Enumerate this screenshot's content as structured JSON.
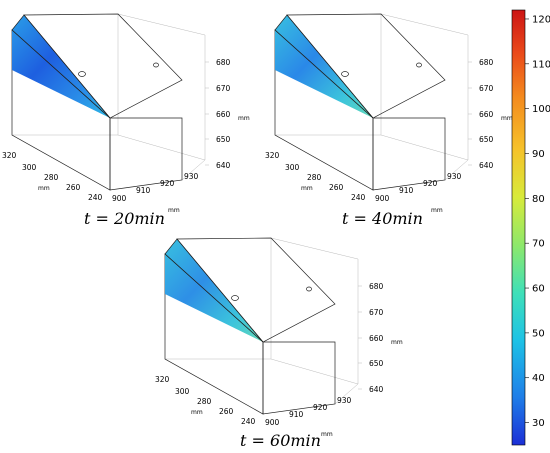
{
  "panels": [
    {
      "caption": "t = 20min",
      "z_ticks": [
        "680",
        "670",
        "660",
        "650",
        "640"
      ],
      "z_unit": "mm",
      "y_ticks": [
        "320",
        "300",
        "280",
        "260",
        "240"
      ],
      "y_unit": "mm",
      "x_ticks": [
        "900",
        "910",
        "920",
        "930"
      ],
      "x_unit": "mm",
      "heat": 0.0
    },
    {
      "caption": "t = 40min",
      "z_ticks": [
        "680",
        "670",
        "660",
        "650",
        "640"
      ],
      "z_unit": "mm",
      "y_ticks": [
        "320",
        "300",
        "280",
        "260",
        "240"
      ],
      "y_unit": "mm",
      "x_ticks": [
        "900",
        "910",
        "920",
        "930"
      ],
      "x_unit": "mm",
      "heat": 0.5
    },
    {
      "caption": "t = 60min",
      "z_ticks": [
        "680",
        "670",
        "660",
        "650",
        "640"
      ],
      "z_unit": "mm",
      "y_ticks": [
        "320",
        "300",
        "280",
        "260",
        "240"
      ],
      "y_unit": "mm",
      "x_ticks": [
        "900",
        "910",
        "920",
        "930"
      ],
      "x_unit": "mm",
      "heat": 1.0
    }
  ],
  "colorbar": {
    "ticks": [
      "120",
      "110",
      "100",
      "90",
      "80",
      "70",
      "60",
      "50",
      "40",
      "30"
    ],
    "min": 25,
    "max": 122,
    "colors": [
      "#1c2fd6",
      "#1f7ee8",
      "#1ec2e6",
      "#3fe0b8",
      "#8ee86a",
      "#d8ea3a",
      "#f6c22a",
      "#f48a1e",
      "#ea4a1a",
      "#cc1414"
    ]
  }
}
